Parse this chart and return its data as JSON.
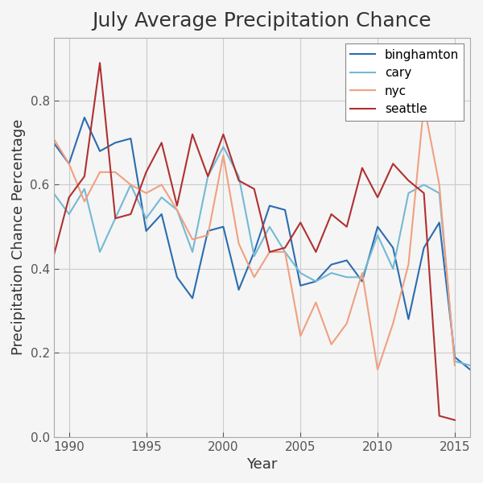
{
  "title": "July Average Precipitation Chance",
  "xlabel": "Year",
  "ylabel": "Precipitation Chance Percentage",
  "years": [
    1989,
    1990,
    1991,
    1992,
    1993,
    1994,
    1995,
    1996,
    1997,
    1998,
    1999,
    2000,
    2001,
    2002,
    2003,
    2004,
    2005,
    2006,
    2007,
    2008,
    2009,
    2010,
    2011,
    2012,
    2013,
    2014,
    2015,
    2016
  ],
  "binghamton": [
    0.7,
    0.65,
    0.76,
    0.68,
    0.7,
    0.71,
    0.49,
    0.53,
    0.38,
    0.33,
    0.49,
    0.5,
    0.35,
    0.44,
    0.55,
    0.54,
    0.36,
    0.37,
    0.41,
    0.42,
    0.37,
    0.5,
    0.45,
    0.28,
    0.45,
    0.51,
    0.19,
    0.16
  ],
  "cary": [
    0.58,
    0.53,
    0.59,
    0.44,
    0.52,
    0.6,
    0.52,
    0.57,
    0.54,
    0.44,
    0.62,
    0.69,
    0.62,
    0.43,
    0.5,
    0.44,
    0.39,
    0.37,
    0.39,
    0.38,
    0.38,
    0.48,
    0.4,
    0.58,
    0.6,
    0.58,
    0.18,
    0.17
  ],
  "nyc": [
    0.71,
    0.65,
    0.56,
    0.63,
    0.63,
    0.6,
    0.58,
    0.6,
    0.54,
    0.47,
    0.48,
    0.67,
    0.46,
    0.38,
    0.44,
    0.44,
    0.24,
    0.32,
    0.22,
    0.27,
    0.39,
    0.16,
    0.27,
    0.41,
    0.79,
    0.6,
    0.17,
    null
  ],
  "seattle": [
    0.43,
    0.57,
    0.62,
    0.89,
    0.52,
    0.53,
    0.63,
    0.7,
    0.55,
    0.72,
    0.62,
    0.72,
    0.61,
    0.59,
    0.44,
    0.45,
    0.51,
    0.44,
    0.53,
    0.5,
    0.64,
    0.57,
    0.65,
    0.61,
    0.58,
    0.05,
    0.04,
    null
  ],
  "colors": {
    "binghamton": "#2b6cb0",
    "cary": "#74b9d4",
    "nyc": "#f0a080",
    "seattle": "#b03030"
  },
  "ylim": [
    0,
    0.95
  ],
  "xlim_min": 1989,
  "xlim_max": 2016,
  "background_color": "#f5f5f5",
  "plot_bg_color": "#f5f5f5",
  "grid_color": "#ffffff",
  "title_fontsize": 18,
  "label_fontsize": 13,
  "tick_fontsize": 11,
  "linewidth": 1.5
}
